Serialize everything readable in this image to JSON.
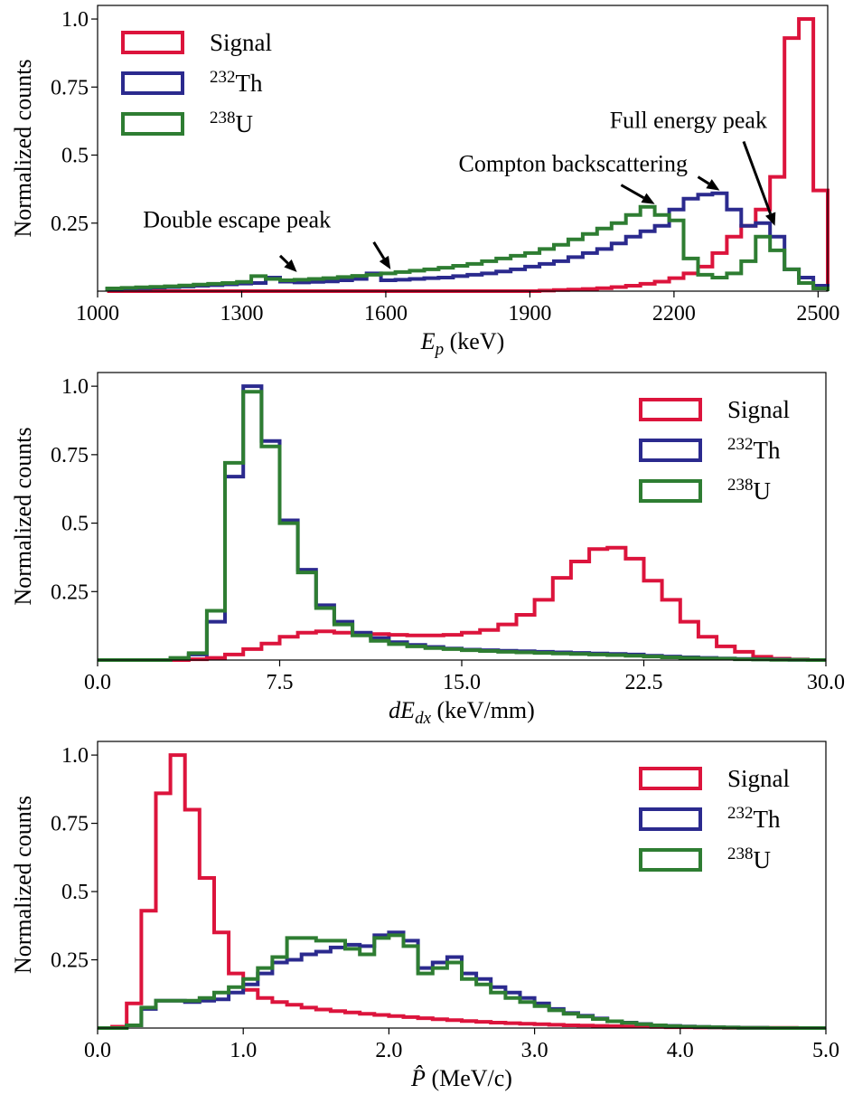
{
  "chart_data": [
    {
      "type": "histogram",
      "xlabel_main": "E",
      "xlabel_sub": "p",
      "xlabel_unit": " (keV)",
      "ylabel": "Normalized counts",
      "xlim": [
        1000,
        2520
      ],
      "ylim": [
        0,
        1.05
      ],
      "xticks": [
        1000,
        1300,
        1600,
        1900,
        2200,
        2500
      ],
      "xtick_labels": [
        "1000",
        "1300",
        "1600",
        "1900",
        "2200",
        "2500"
      ],
      "yticks": [
        0.25,
        0.5,
        0.75,
        1.0
      ],
      "ytick_labels": [
        "0.25",
        "0.5",
        "0.75",
        "1.0"
      ],
      "legend_position": "upper-left",
      "bin_edges": [
        1020,
        1050,
        1080,
        1110,
        1140,
        1170,
        1200,
        1230,
        1260,
        1290,
        1320,
        1350,
        1380,
        1410,
        1440,
        1470,
        1500,
        1530,
        1560,
        1590,
        1620,
        1650,
        1680,
        1710,
        1740,
        1770,
        1800,
        1830,
        1860,
        1890,
        1920,
        1950,
        1980,
        2010,
        2040,
        2070,
        2100,
        2130,
        2160,
        2190,
        2220,
        2250,
        2280,
        2310,
        2340,
        2370,
        2400,
        2430,
        2460,
        2490,
        2520
      ],
      "series": [
        {
          "name": "Signal",
          "name_sup": "",
          "name_text": "Signal",
          "color": "#dc143c",
          "values": [
            0,
            0,
            0,
            0,
            0,
            0,
            0,
            0,
            0,
            0,
            0,
            0,
            0,
            0,
            0,
            0,
            0,
            0,
            0,
            0,
            0,
            0,
            0,
            0,
            0,
            0,
            0,
            0,
            0,
            0,
            0.002,
            0.004,
            0.006,
            0.008,
            0.011,
            0.015,
            0.02,
            0.027,
            0.035,
            0.048,
            0.065,
            0.09,
            0.14,
            0.2,
            0.24,
            0.3,
            0.42,
            0.93,
            1.0,
            0.37
          ]
        },
        {
          "name": "232Th",
          "name_sup": "232",
          "name_text": "Th",
          "color": "#2b2a8e",
          "values": [
            0.008,
            0.01,
            0.011,
            0.013,
            0.015,
            0.017,
            0.02,
            0.022,
            0.025,
            0.028,
            0.03,
            0.05,
            0.035,
            0.032,
            0.034,
            0.036,
            0.04,
            0.045,
            0.065,
            0.04,
            0.042,
            0.045,
            0.048,
            0.05,
            0.055,
            0.06,
            0.065,
            0.072,
            0.08,
            0.09,
            0.1,
            0.11,
            0.125,
            0.14,
            0.155,
            0.175,
            0.2,
            0.22,
            0.24,
            0.3,
            0.34,
            0.355,
            0.36,
            0.3,
            0.24,
            0.25,
            0.2,
            0.08,
            0.05,
            0.02
          ]
        },
        {
          "name": "238U",
          "name_sup": "238",
          "name_text": "U",
          "color": "#2e7d32",
          "values": [
            0.01,
            0.012,
            0.014,
            0.016,
            0.018,
            0.021,
            0.024,
            0.027,
            0.03,
            0.034,
            0.055,
            0.045,
            0.04,
            0.042,
            0.045,
            0.048,
            0.052,
            0.056,
            0.06,
            0.065,
            0.07,
            0.075,
            0.08,
            0.086,
            0.093,
            0.1,
            0.11,
            0.12,
            0.13,
            0.14,
            0.155,
            0.17,
            0.19,
            0.21,
            0.23,
            0.25,
            0.28,
            0.31,
            0.28,
            0.26,
            0.12,
            0.06,
            0.05,
            0.065,
            0.11,
            0.2,
            0.15,
            0.08,
            0.03,
            0.01
          ]
        }
      ],
      "annotations": [
        {
          "id": "double-escape",
          "text": "Double escape peak",
          "text_x": 1290,
          "text_y": 0.235,
          "arrows": [
            {
              "from": [
                1380,
                0.13
              ],
              "to": [
                1415,
                0.07
              ]
            },
            {
              "from": [
                1575,
                0.18
              ],
              "to": [
                1610,
                0.08
              ]
            }
          ]
        },
        {
          "id": "compton",
          "text": "Compton backscattering",
          "text_x": 1990,
          "text_y": 0.44,
          "arrows": [
            {
              "from": [
                2090,
                0.39
              ],
              "to": [
                2160,
                0.32
              ]
            },
            {
              "from": [
                2250,
                0.42
              ],
              "to": [
                2295,
                0.37
              ]
            }
          ]
        },
        {
          "id": "full-energy",
          "text": "Full energy peak",
          "text_x": 2230,
          "text_y": 0.6,
          "arrows": [
            {
              "from": [
                2345,
                0.55
              ],
              "to": [
                2410,
                0.24
              ]
            }
          ]
        }
      ]
    },
    {
      "type": "histogram",
      "xlabel_main": "dE",
      "xlabel_sub": "dx",
      "xlabel_unit": " (keV/mm)",
      "ylabel": "Normalized counts",
      "xlim": [
        0,
        30
      ],
      "ylim": [
        0,
        1.05
      ],
      "xticks": [
        0,
        7.5,
        15,
        22.5,
        30
      ],
      "xtick_labels": [
        "0.0",
        "7.5",
        "15.0",
        "22.5",
        "30.0"
      ],
      "yticks": [
        0.25,
        0.5,
        0.75,
        1.0
      ],
      "ytick_labels": [
        "0.25",
        "0.5",
        "0.75",
        "1.0"
      ],
      "legend_position": "upper-right",
      "bin_edges": [
        0,
        0.75,
        1.5,
        2.25,
        3,
        3.75,
        4.5,
        5.25,
        6,
        6.75,
        7.5,
        8.25,
        9,
        9.75,
        10.5,
        11.25,
        12,
        12.75,
        13.5,
        14.25,
        15,
        15.75,
        16.5,
        17.25,
        18,
        18.75,
        19.5,
        20.25,
        21,
        21.75,
        22.5,
        23.25,
        24,
        24.75,
        25.5,
        26.25,
        27,
        27.75,
        28.5,
        29.25,
        30
      ],
      "series": [
        {
          "name": "Signal",
          "name_sup": "",
          "name_text": "Signal",
          "color": "#dc143c",
          "values": [
            0,
            0,
            0,
            0,
            0,
            0.003,
            0.008,
            0.02,
            0.04,
            0.06,
            0.085,
            0.1,
            0.105,
            0.1,
            0.098,
            0.095,
            0.092,
            0.09,
            0.09,
            0.092,
            0.1,
            0.11,
            0.13,
            0.165,
            0.22,
            0.3,
            0.36,
            0.405,
            0.41,
            0.37,
            0.29,
            0.22,
            0.14,
            0.085,
            0.05,
            0.03,
            0.012,
            0.005,
            0.002,
            0
          ]
        },
        {
          "name": "232Th",
          "name_sup": "232",
          "name_text": "Th",
          "color": "#2b2a8e",
          "values": [
            0,
            0,
            0,
            0,
            0.005,
            0.02,
            0.14,
            0.67,
            1.0,
            0.8,
            0.51,
            0.33,
            0.2,
            0.14,
            0.1,
            0.08,
            0.065,
            0.055,
            0.048,
            0.042,
            0.038,
            0.036,
            0.034,
            0.032,
            0.03,
            0.028,
            0.026,
            0.024,
            0.022,
            0.02,
            0.016,
            0.013,
            0.01,
            0.008,
            0.006,
            0.004,
            0.003,
            0.002,
            0.001,
            0
          ]
        },
        {
          "name": "238U",
          "name_sup": "238",
          "name_text": "U",
          "color": "#2e7d32",
          "values": [
            0,
            0,
            0,
            0,
            0.008,
            0.025,
            0.18,
            0.72,
            0.98,
            0.78,
            0.5,
            0.32,
            0.19,
            0.13,
            0.09,
            0.07,
            0.058,
            0.05,
            0.044,
            0.04,
            0.036,
            0.033,
            0.03,
            0.028,
            0.026,
            0.024,
            0.022,
            0.02,
            0.018,
            0.016,
            0.013,
            0.01,
            0.008,
            0.006,
            0.005,
            0.003,
            0.002,
            0.001,
            0.001,
            0
          ]
        }
      ],
      "annotations": []
    },
    {
      "type": "histogram",
      "xlabel_main": "P̂",
      "xlabel_sub": "",
      "xlabel_unit": " (MeV/c)",
      "ylabel": "Normalized counts",
      "xlim": [
        0,
        5
      ],
      "ylim": [
        0,
        1.05
      ],
      "xticks": [
        0,
        1,
        2,
        3,
        4,
        5
      ],
      "xtick_labels": [
        "0.0",
        "1.0",
        "2.0",
        "3.0",
        "4.0",
        "5.0"
      ],
      "yticks": [
        0.25,
        0.5,
        0.75,
        1.0
      ],
      "ytick_labels": [
        "0.25",
        "0.5",
        "0.75",
        "1.0"
      ],
      "legend_position": "upper-right",
      "bin_edges": [
        0,
        0.1,
        0.2,
        0.3,
        0.4,
        0.5,
        0.6,
        0.7,
        0.8,
        0.9,
        1.0,
        1.1,
        1.2,
        1.3,
        1.4,
        1.5,
        1.6,
        1.7,
        1.8,
        1.9,
        2.0,
        2.1,
        2.2,
        2.3,
        2.4,
        2.5,
        2.6,
        2.7,
        2.8,
        2.9,
        3.0,
        3.1,
        3.2,
        3.3,
        3.4,
        3.5,
        3.6,
        3.7,
        3.8,
        3.9,
        4.0,
        4.1,
        4.2,
        4.3,
        4.4,
        4.5,
        4.6,
        4.7,
        4.8,
        4.9,
        5.0
      ],
      "series": [
        {
          "name": "Signal",
          "name_sup": "",
          "name_text": "Signal",
          "color": "#dc143c",
          "values": [
            0,
            0.005,
            0.09,
            0.43,
            0.86,
            1.0,
            0.8,
            0.55,
            0.35,
            0.2,
            0.14,
            0.11,
            0.095,
            0.085,
            0.075,
            0.068,
            0.062,
            0.057,
            0.052,
            0.048,
            0.044,
            0.04,
            0.036,
            0.032,
            0.029,
            0.026,
            0.023,
            0.02,
            0.018,
            0.016,
            0.014,
            0.012,
            0.01,
            0.009,
            0.008,
            0.007,
            0.006,
            0.005,
            0.004,
            0.003,
            0.003,
            0.002,
            0.002,
            0.001,
            0.001,
            0.001,
            0.001,
            0.001,
            0,
            0
          ]
        },
        {
          "name": "232Th",
          "name_sup": "232",
          "name_text": "Th",
          "color": "#2b2a8e",
          "values": [
            0,
            0,
            0.01,
            0.07,
            0.1,
            0.1,
            0.095,
            0.1,
            0.105,
            0.13,
            0.16,
            0.2,
            0.24,
            0.25,
            0.27,
            0.28,
            0.295,
            0.305,
            0.3,
            0.34,
            0.35,
            0.32,
            0.22,
            0.24,
            0.26,
            0.2,
            0.18,
            0.15,
            0.13,
            0.11,
            0.09,
            0.07,
            0.055,
            0.045,
            0.035,
            0.025,
            0.02,
            0.015,
            0.01,
            0.008,
            0.006,
            0.004,
            0.003,
            0.002,
            0.001,
            0.001,
            0,
            0,
            0,
            0
          ]
        },
        {
          "name": "238U",
          "name_sup": "238",
          "name_text": "U",
          "color": "#2e7d32",
          "values": [
            0,
            0,
            0.01,
            0.075,
            0.1,
            0.1,
            0.1,
            0.11,
            0.13,
            0.15,
            0.18,
            0.22,
            0.26,
            0.33,
            0.33,
            0.32,
            0.32,
            0.29,
            0.27,
            0.33,
            0.34,
            0.3,
            0.2,
            0.22,
            0.24,
            0.18,
            0.16,
            0.13,
            0.11,
            0.095,
            0.08,
            0.065,
            0.052,
            0.042,
            0.033,
            0.025,
            0.019,
            0.014,
            0.01,
            0.007,
            0.005,
            0.004,
            0.003,
            0.002,
            0.001,
            0.001,
            0,
            0,
            0,
            0
          ]
        }
      ],
      "annotations": []
    }
  ]
}
